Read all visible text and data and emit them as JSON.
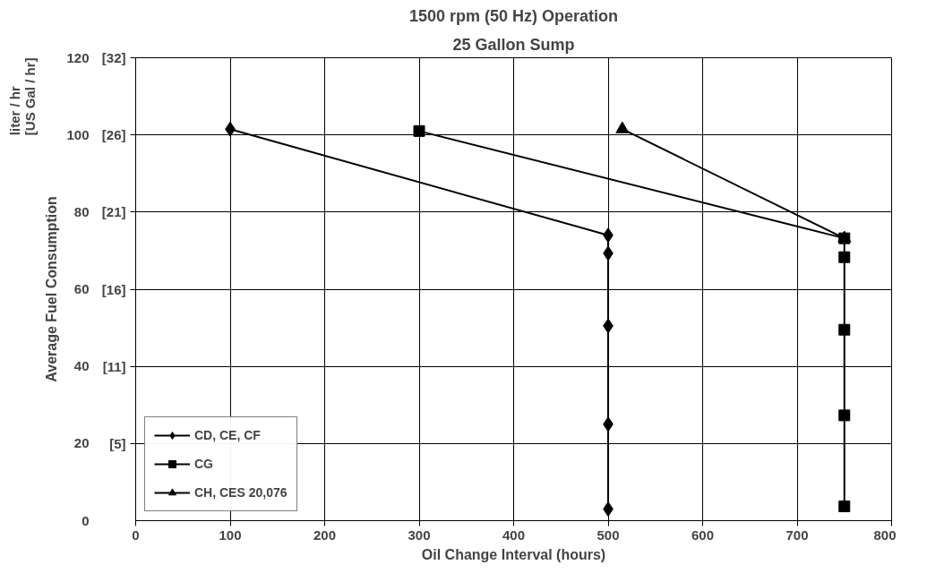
{
  "chart_data": {
    "type": "line",
    "title": "1500 rpm (50 Hz) Operation",
    "subtitle": "25 Gallon Sump",
    "xlabel": "Oil Change Interval (hours)",
    "ylabel": "Average Fuel Consumption",
    "annotations": [
      "liter / hr\n[US Gal / hr]"
    ],
    "xlim": [
      0,
      800
    ],
    "xticks": [
      0,
      100,
      200,
      300,
      400,
      500,
      600,
      700,
      800
    ],
    "ylim": [
      0,
      120
    ],
    "yticks": [
      0,
      20,
      40,
      60,
      80,
      100,
      120
    ],
    "y2lim": [
      0,
      31.7
    ],
    "y2ticks": [
      {
        "value": 5.284,
        "label": "[5]"
      },
      {
        "value": 10.568,
        "label": "[11]"
      },
      {
        "value": 15.85,
        "label": "[16]"
      },
      {
        "value": 21.14,
        "label": "[21]"
      },
      {
        "value": 26.42,
        "label": "[26]"
      },
      {
        "value": 31.7,
        "label": "[32]"
      }
    ],
    "grid": true,
    "legend": "bottom left",
    "series": [
      {
        "name": "CD, CE, CF",
        "color": "#000000",
        "marker": "diamond",
        "x": [
          100,
          500,
          500,
          500,
          500,
          500
        ],
        "values": [
          101.5,
          74,
          69.3,
          50.5,
          25,
          3
        ]
      },
      {
        "name": "CG",
        "color": "#000000",
        "marker": "square",
        "x": [
          300,
          750,
          750,
          750,
          750,
          750
        ],
        "values": [
          101,
          73.2,
          68.3,
          49.5,
          27.3,
          3.7
        ]
      },
      {
        "name": "CH, CES 20,076",
        "color": "#000000",
        "marker": "triangle",
        "x": [
          515,
          750
        ],
        "values": [
          101.5,
          73.2
        ]
      }
    ]
  }
}
